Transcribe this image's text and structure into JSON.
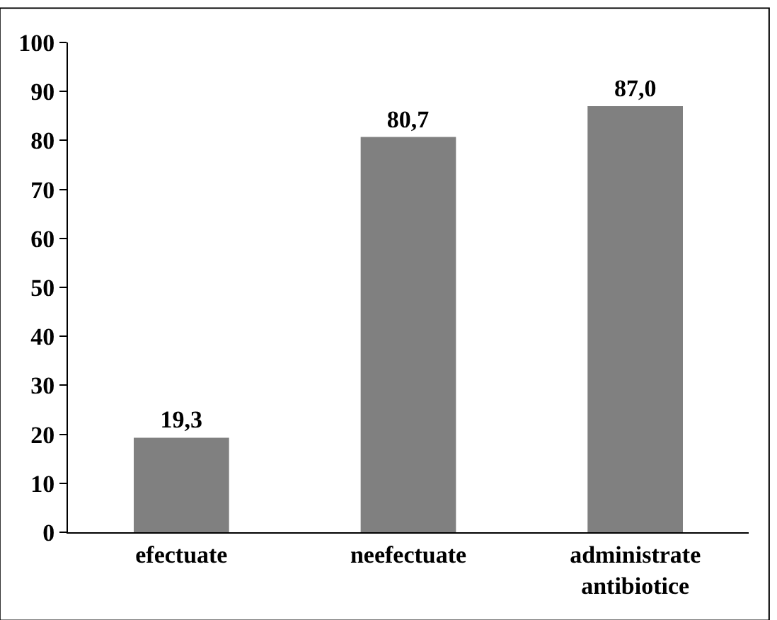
{
  "chart_data": {
    "type": "bar",
    "categories": [
      "efectuate",
      "neefectuate",
      "administrate antibiotice"
    ],
    "values": [
      19.3,
      80.7,
      87.0
    ],
    "value_labels": [
      "19,3",
      "80,7",
      "87,0"
    ],
    "color": "#808080",
    "ylim": [
      0,
      100
    ],
    "yticks": [
      0,
      10,
      20,
      30,
      40,
      50,
      60,
      70,
      80,
      90,
      100
    ],
    "legend": false
  }
}
